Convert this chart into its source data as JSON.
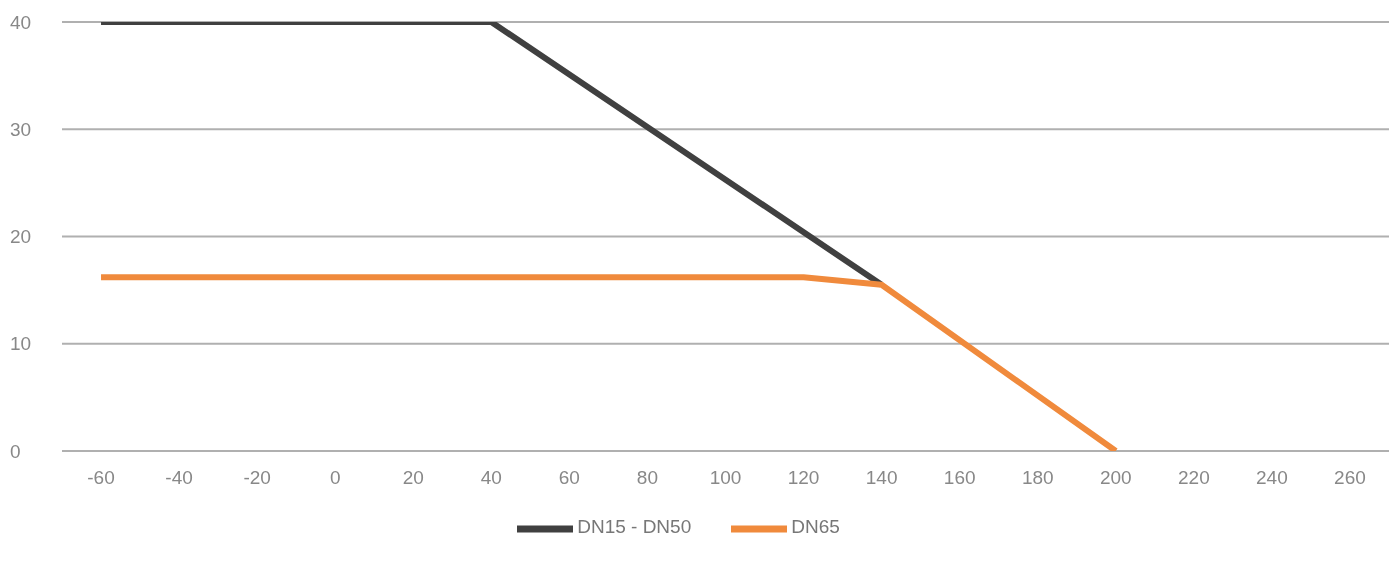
{
  "chart_data": {
    "type": "line",
    "xlim": [
      -70,
      270
    ],
    "xticks": [
      -60,
      -40,
      -20,
      0,
      20,
      40,
      60,
      80,
      100,
      120,
      140,
      160,
      180,
      200,
      220,
      240,
      260
    ],
    "ylim": [
      0,
      40
    ],
    "yticks": [
      0,
      10,
      20,
      30,
      40
    ],
    "series": [
      {
        "name": "DN15 - DN50",
        "color": "#404040",
        "x": [
          -60,
          40,
          140
        ],
        "values": [
          40,
          40,
          15.5
        ]
      },
      {
        "name": "DN65",
        "color": "#f08a3c",
        "x": [
          -60,
          120,
          140,
          200
        ],
        "values": [
          16.2,
          16.2,
          15.5,
          0
        ]
      }
    ],
    "grid": "y",
    "legend": "bottom",
    "marker": "none",
    "line_style": "solid"
  }
}
